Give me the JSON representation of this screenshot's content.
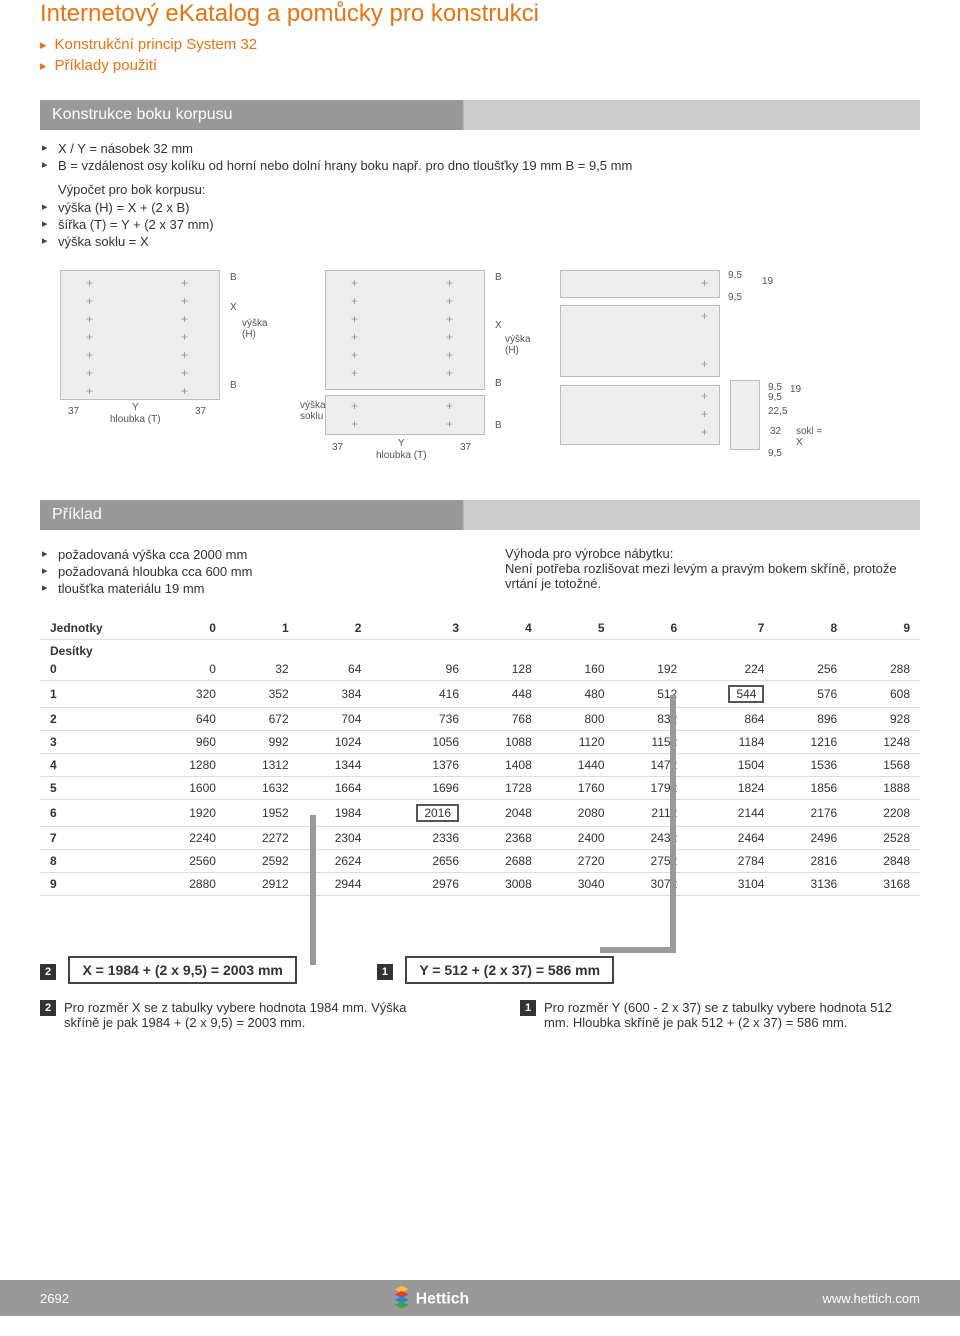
{
  "header": {
    "title": "Internetový eKatalog a pomůcky pro konstrukci",
    "subtitle1": "Konstrukční princip System 32",
    "subtitle2": "Příklady použití"
  },
  "section1": {
    "title": "Konstrukce boku korpusu",
    "bullets": [
      "X / Y = násobek 32 mm",
      "B  = vzdálenost osy kolíku od horní nebo dolní hrany boku např. pro dno tloušťky 19 mm B = 9,5 mm"
    ],
    "calc_title": "Výpočet pro bok korpusu:",
    "calc_bullets": [
      "výška (H) = X + (2 x B)",
      "šířka (T) = Y + (2 x 37 mm)",
      "výška soklu = X"
    ],
    "diagram_labels": {
      "B": "B",
      "X": "X",
      "Y": "Y",
      "vyska_H": "výška (H)",
      "vyska_soklu": "výška\nsoklu",
      "hloubka_T": "hloubka (T)",
      "num37": "37",
      "n95": "9,5",
      "n19": "19",
      "n225": "22,5",
      "n32": "32",
      "sokl_X": "sokl = X"
    }
  },
  "example": {
    "title": "Příklad",
    "left_bullets": [
      "požadovaná výška cca 2000 mm",
      "požadovaná hloubka cca 600 mm",
      "tloušťka materiálu 19 mm"
    ],
    "right_heading": "Výhoda pro výrobce nábytku:",
    "right_text": "Není potřeba rozlišovat mezi levým a pravým bokem skříně, protože vrtání je totožné."
  },
  "table": {
    "col_header": "Jednotky",
    "row_header": "Desítky",
    "cols": [
      "0",
      "1",
      "2",
      "3",
      "4",
      "5",
      "6",
      "7",
      "8",
      "9"
    ],
    "rows": [
      [
        "0",
        "0",
        "32",
        "64",
        "96",
        "128",
        "160",
        "192",
        "224",
        "256",
        "288"
      ],
      [
        "1",
        "320",
        "352",
        "384",
        "416",
        "448",
        "480",
        "512",
        "544",
        "576",
        "608"
      ],
      [
        "2",
        "640",
        "672",
        "704",
        "736",
        "768",
        "800",
        "832",
        "864",
        "896",
        "928"
      ],
      [
        "3",
        "960",
        "992",
        "1024",
        "1056",
        "1088",
        "1120",
        "1152",
        "1184",
        "1216",
        "1248"
      ],
      [
        "4",
        "1280",
        "1312",
        "1344",
        "1376",
        "1408",
        "1440",
        "1472",
        "1504",
        "1536",
        "1568"
      ],
      [
        "5",
        "1600",
        "1632",
        "1664",
        "1696",
        "1728",
        "1760",
        "1792",
        "1824",
        "1856",
        "1888"
      ],
      [
        "6",
        "1920",
        "1952",
        "1984",
        "2016",
        "2048",
        "2080",
        "2112",
        "2144",
        "2176",
        "2208"
      ],
      [
        "7",
        "2240",
        "2272",
        "2304",
        "2336",
        "2368",
        "2400",
        "2432",
        "2464",
        "2496",
        "2528"
      ],
      [
        "8",
        "2560",
        "2592",
        "2624",
        "2656",
        "2688",
        "2720",
        "2752",
        "2784",
        "2816",
        "2848"
      ],
      [
        "9",
        "2880",
        "2912",
        "2944",
        "2976",
        "3008",
        "3040",
        "3072",
        "3104",
        "3136",
        "3168"
      ]
    ],
    "highlight1": {
      "row": 1,
      "col": 7,
      "value": "512"
    },
    "highlight2": {
      "row": 6,
      "col": 3,
      "value": "1984"
    }
  },
  "formulas": {
    "f2_label": "2",
    "f2_text": "X = 1984 + (2 x 9,5) = 2003 mm",
    "f1_label": "1",
    "f1_text": "Y = 512 + (2 x 37) = 586 mm",
    "expl2_badge": "2",
    "expl2_text": "Pro rozměr X se z tabulky vybere hodnota 1984 mm. Výška skříně je pak 1984 + (2 x 9,5) = 2003 mm.",
    "expl1_badge": "1",
    "expl1_text": "Pro rozměr Y (600 - 2 x 37) se z tabulky vybere hodnota 512 mm. Hloubka skříně je pak 512 + (2 x 37) = 586 mm."
  },
  "footer": {
    "page": "2692",
    "brand": "Hettich",
    "url": "www.hettich.com"
  },
  "colors": {
    "accent": "#e8730f",
    "gray_bar": "#999999",
    "panel_bg": "#eeeeee"
  }
}
